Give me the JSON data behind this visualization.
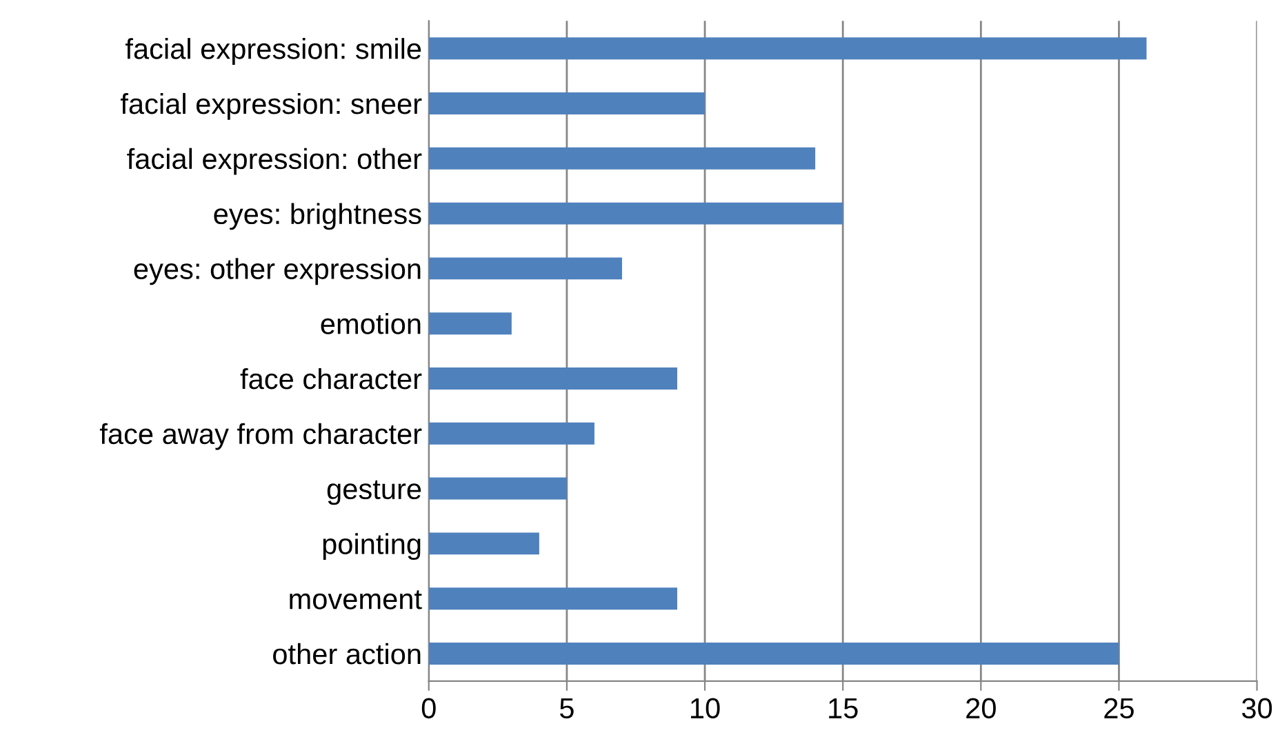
{
  "chart_data": {
    "type": "bar",
    "orientation": "horizontal",
    "categories": [
      "facial expression: smile",
      "facial expression: sneer",
      "facial expression: other",
      "eyes: brightness",
      "eyes: other expression",
      "emotion",
      "face character",
      "face away from character",
      "gesture",
      "pointing",
      "movement",
      "other action"
    ],
    "values": [
      26,
      10,
      14,
      15,
      7,
      3,
      9,
      6,
      5,
      4,
      9,
      25
    ],
    "color": "#4f81bd",
    "xlim": [
      0,
      30
    ],
    "xticks": [
      0,
      5,
      10,
      15,
      20,
      25,
      30
    ],
    "grid": "x",
    "legend": false
  }
}
